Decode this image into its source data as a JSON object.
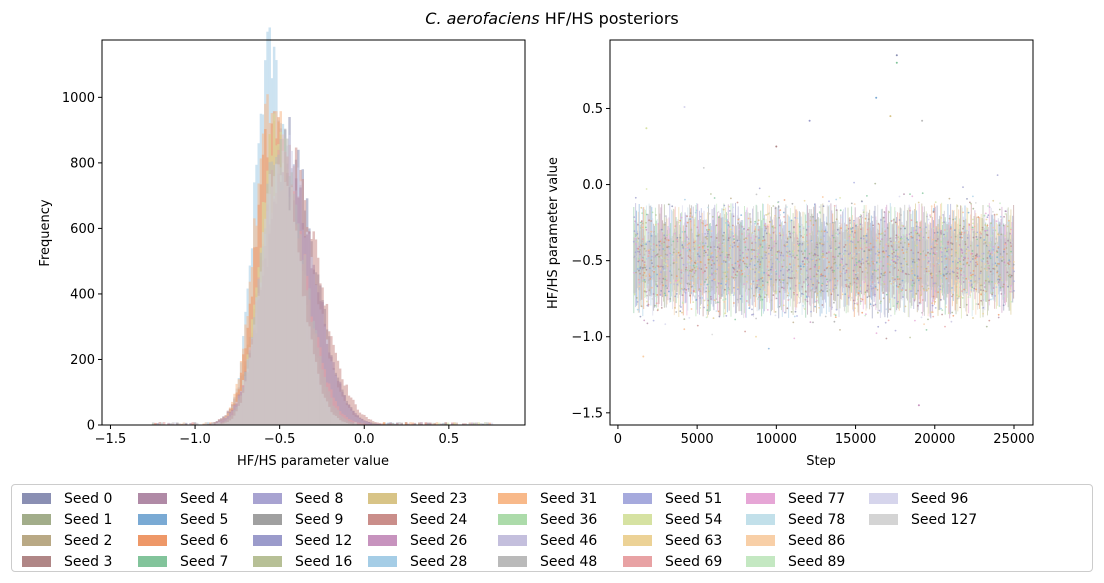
{
  "figure": {
    "title_italic": "C. aerofaciens",
    "title_rest": " HF/HS posteriors"
  },
  "colors": {
    "seed_0": "#8a8fb3",
    "seed_1": "#a2ad8a",
    "seed_2": "#b9a985",
    "seed_3": "#b08686",
    "seed_4": "#b08aa6",
    "seed_5": "#7aaad4",
    "seed_6": "#ee9868",
    "seed_7": "#82c49b",
    "seed_8": "#a8a3d1",
    "seed_9": "#a0a0a0",
    "seed_12": "#9b9bcb",
    "seed_16": "#b7c096",
    "seed_23": "#d8c487",
    "seed_24": "#ca8e8a",
    "seed_26": "#c793be",
    "seed_28": "#a5cde6",
    "seed_31": "#f8b98a",
    "seed_36": "#acdbaa",
    "seed_46": "#c4bfdd",
    "seed_48": "#bababa",
    "seed_51": "#a6aadd",
    "seed_54": "#d6e2a2",
    "seed_63": "#ecd296",
    "seed_69": "#e8a2a4",
    "seed_77": "#e6a6d6",
    "seed_78": "#c2e0ea",
    "seed_86": "#f8cfa7",
    "seed_89": "#c4e8c2",
    "seed_96": "#d6d5ec",
    "seed_127": "#d4d4d4"
  },
  "chart_data": [
    {
      "type": "histogram",
      "title": "",
      "xlabel": "HF/HS parameter value",
      "ylabel": "Frequency",
      "xlim": [
        -1.55,
        0.95
      ],
      "ylim": [
        0,
        1175
      ],
      "xticks": [
        -1.5,
        -1.0,
        -0.5,
        0.0,
        0.5
      ],
      "xtick_labels": [
        "−1.5",
        "−1.0",
        "−0.5",
        "0.0",
        "0.5"
      ],
      "yticks": [
        0,
        200,
        400,
        600,
        800,
        1000
      ],
      "ytick_labels": [
        "0",
        "200",
        "400",
        "600",
        "800",
        "1000"
      ],
      "grid": false,
      "series": [
        {
          "name": "Seed 0",
          "peak_x": -0.48,
          "peak_count": 880
        },
        {
          "name": "Seed 28",
          "peak_x": -0.56,
          "peak_count": 1130
        },
        {
          "name": "Seed 6",
          "peak_x": -0.54,
          "peak_count": 930
        },
        {
          "name": "Seed 96",
          "peak_x": -0.47,
          "peak_count": 820
        },
        {
          "name": "Seed 48",
          "peak_x": -0.5,
          "peak_count": 860
        }
      ]
    },
    {
      "type": "scatter",
      "title": "",
      "xlabel": "Step",
      "ylabel": "HF/HS parameter value",
      "xlim": [
        -500,
        26200
      ],
      "ylim": [
        -1.58,
        0.95
      ],
      "xticks": [
        0,
        5000,
        10000,
        15000,
        20000,
        25000
      ],
      "xtick_labels": [
        "0",
        "5000",
        "10000",
        "15000",
        "20000",
        "25000"
      ],
      "yticks": [
        -1.5,
        -1.0,
        -0.5,
        0.0,
        0.5
      ],
      "ytick_labels": [
        "−1.5",
        "−1.0",
        "−0.5",
        "0.0",
        "0.5"
      ],
      "grid": false,
      "step_range": [
        1000,
        25000
      ],
      "band": {
        "center": -0.5,
        "typical_low": -0.85,
        "typical_high": -0.15
      },
      "outliers": [
        {
          "x": 17600,
          "y": 0.85
        },
        {
          "x": 17600,
          "y": 0.8
        },
        {
          "x": 19000,
          "y": -1.45
        },
        {
          "x": 1800,
          "y": 0.37
        },
        {
          "x": 4200,
          "y": 0.51
        },
        {
          "x": 16300,
          "y": 0.57
        },
        {
          "x": 17200,
          "y": 0.45
        },
        {
          "x": 19200,
          "y": 0.42
        },
        {
          "x": 1600,
          "y": -1.13
        },
        {
          "x": 10000,
          "y": 0.25
        },
        {
          "x": 12100,
          "y": 0.42
        }
      ]
    }
  ],
  "legend": {
    "entries": [
      {
        "label": "Seed 0",
        "color_key": "seed_0"
      },
      {
        "label": "Seed 1",
        "color_key": "seed_1"
      },
      {
        "label": "Seed 2",
        "color_key": "seed_2"
      },
      {
        "label": "Seed 3",
        "color_key": "seed_3"
      },
      {
        "label": "Seed 4",
        "color_key": "seed_4"
      },
      {
        "label": "Seed 5",
        "color_key": "seed_5"
      },
      {
        "label": "Seed 6",
        "color_key": "seed_6"
      },
      {
        "label": "Seed 7",
        "color_key": "seed_7"
      },
      {
        "label": "Seed 8",
        "color_key": "seed_8"
      },
      {
        "label": "Seed 9",
        "color_key": "seed_9"
      },
      {
        "label": "Seed 12",
        "color_key": "seed_12"
      },
      {
        "label": "Seed 16",
        "color_key": "seed_16"
      },
      {
        "label": "Seed 23",
        "color_key": "seed_23"
      },
      {
        "label": "Seed 24",
        "color_key": "seed_24"
      },
      {
        "label": "Seed 26",
        "color_key": "seed_26"
      },
      {
        "label": "Seed 28",
        "color_key": "seed_28"
      },
      {
        "label": "Seed 31",
        "color_key": "seed_31"
      },
      {
        "label": "Seed 36",
        "color_key": "seed_36"
      },
      {
        "label": "Seed 46",
        "color_key": "seed_46"
      },
      {
        "label": "Seed 48",
        "color_key": "seed_48"
      },
      {
        "label": "Seed 51",
        "color_key": "seed_51"
      },
      {
        "label": "Seed 54",
        "color_key": "seed_54"
      },
      {
        "label": "Seed 63",
        "color_key": "seed_63"
      },
      {
        "label": "Seed 69",
        "color_key": "seed_69"
      },
      {
        "label": "Seed 77",
        "color_key": "seed_77"
      },
      {
        "label": "Seed 78",
        "color_key": "seed_78"
      },
      {
        "label": "Seed 86",
        "color_key": "seed_86"
      },
      {
        "label": "Seed 89",
        "color_key": "seed_89"
      },
      {
        "label": "Seed 96",
        "color_key": "seed_96"
      },
      {
        "label": "Seed 127",
        "color_key": "seed_127"
      }
    ]
  }
}
